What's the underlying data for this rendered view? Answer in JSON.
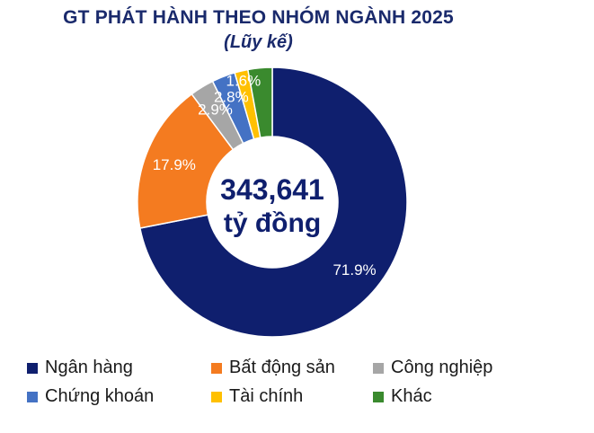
{
  "chart_data": {
    "type": "pie",
    "title": "GT PHÁT HÀNH THEO NHÓM NGÀNH 2025",
    "subtitle": "(Lũy kế)",
    "center_value": "343,641",
    "center_unit": "tỷ đồng",
    "slices": [
      {
        "label": "Ngân hàng",
        "value": 71.9,
        "value_label": "71.9%",
        "color": "#0f1f6e"
      },
      {
        "label": "Bất động sản",
        "value": 17.9,
        "value_label": "17.9%",
        "color": "#f47b20"
      },
      {
        "label": "Công nghiệp",
        "value": 2.9,
        "value_label": "2.9%",
        "color": "#a6a6a6"
      },
      {
        "label": "Chứng khoán",
        "value": 2.8,
        "value_label": "2.8%",
        "color": "#4472c4"
      },
      {
        "label": "Tài chính",
        "value": 1.6,
        "value_label": "1.6%",
        "color": "#ffc000"
      },
      {
        "label": "Khác",
        "value": 2.9,
        "value_label": "",
        "color": "#3a8a2e"
      }
    ],
    "legend_position": "bottom"
  }
}
